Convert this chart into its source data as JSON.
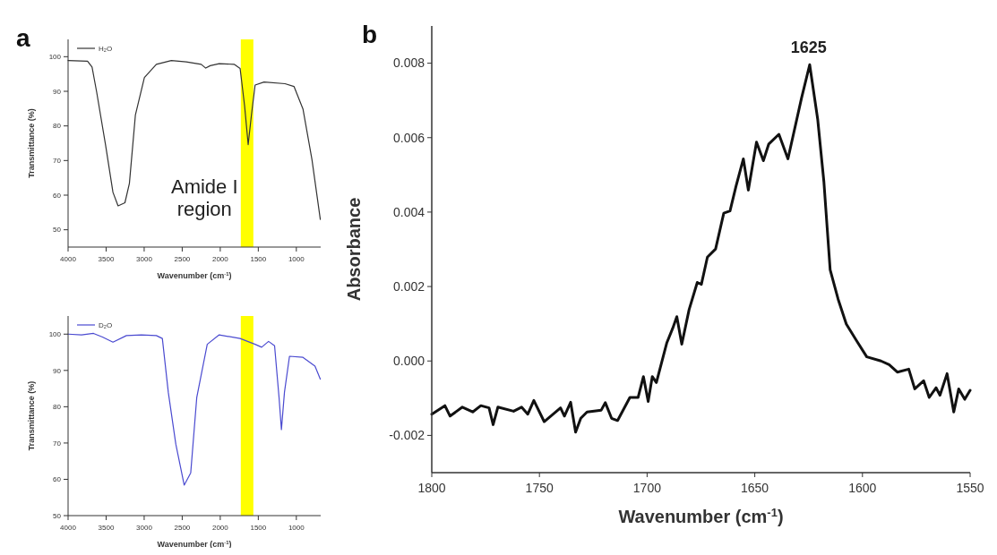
{
  "chart_data": [
    {
      "type": "line",
      "title": "a",
      "xlabel": "Wavenumber (cm$^{-1}$)",
      "ylabel": "Transmittance (%)",
      "xlim": [
        4000,
        680
      ],
      "ylim": [
        45,
        105
      ],
      "xticks": [
        4000,
        3500,
        3000,
        2500,
        2000,
        1500,
        1000
      ],
      "yticks": [
        50,
        60,
        70,
        80,
        90,
        100
      ],
      "legend": "top left",
      "annotations": [
        "Amide I region"
      ],
      "bands": [
        {
          "axis": "x",
          "from": 1730,
          "to": 1565,
          "color": "#ffff00"
        }
      ],
      "series": [
        {
          "name": "H₂O",
          "color": "#333333",
          "x": [
            4000,
            3744,
            3685,
            3626,
            3508,
            3410,
            3343,
            3253,
            3194,
            3115,
            2997,
            2840,
            2643,
            2447,
            2250,
            2191,
            2132,
            2014,
            1818,
            1739,
            1680,
            1633,
            1590,
            1542,
            1424,
            1149,
            1031,
            913,
            795,
            685
          ],
          "values": [
            98.9,
            98.7,
            97,
            90,
            74.6,
            60.8,
            56.9,
            57.8,
            63.4,
            83.2,
            94,
            97.8,
            98.9,
            98.5,
            97.8,
            96.7,
            97.4,
            98,
            97.8,
            96.6,
            85.8,
            74.6,
            83.2,
            91.8,
            92.7,
            92.2,
            91.4,
            84.9,
            70.3,
            53
          ]
        }
      ]
    },
    {
      "type": "line",
      "xlabel": "Wavenumber (cm$^{-1}$)",
      "ylabel": "Transmittance (%)",
      "xlim": [
        4000,
        680
      ],
      "ylim": [
        50,
        105
      ],
      "xticks": [
        4000,
        3500,
        3000,
        2500,
        2000,
        1500,
        1000
      ],
      "yticks": [
        50,
        60,
        70,
        80,
        90,
        100
      ],
      "legend": "top left",
      "bands": [
        {
          "axis": "x",
          "from": 1730,
          "to": 1565,
          "color": "#ffff00"
        }
      ],
      "series": [
        {
          "name": "D₂O",
          "color": "#4a4ad0",
          "x": [
            4000,
            3823,
            3666,
            3548,
            3410,
            3233,
            3037,
            2840,
            2761,
            2683,
            2584,
            2474,
            2388,
            2309,
            2171,
            2014,
            1739,
            1542,
            1456,
            1365,
            1286,
            1227,
            1196,
            1156,
            1090,
            913,
            755,
            685
          ],
          "values": [
            100,
            99.8,
            100.2,
            99.2,
            97.8,
            99.6,
            99.8,
            99.6,
            98.8,
            84,
            69.7,
            58.4,
            61.8,
            82.5,
            97.2,
            99.8,
            98.8,
            97.2,
            96.4,
            98,
            96.8,
            82.5,
            73.7,
            84,
            93.9,
            93.6,
            91.2,
            87.6
          ]
        }
      ]
    },
    {
      "type": "line",
      "title": "b",
      "xlabel": "Wavenumber (cm$^{-1}$)",
      "ylabel": "Absorbance",
      "xlim": [
        1800,
        1550
      ],
      "ylim": [
        -0.003,
        0.009
      ],
      "xticks": [
        1800,
        1750,
        1700,
        1650,
        1600,
        1550
      ],
      "yticks": [
        {
          "value": -0.002,
          "label": "-0.002"
        },
        {
          "value": 0,
          "label": "0.000"
        },
        0.002,
        0.004,
        0.006,
        0.008
      ],
      "annotations": [
        {
          "text": "1625",
          "x": 1625,
          "y": 0.008
        }
      ],
      "series": [
        {
          "color": "#111111",
          "x": [
            1800,
            1793.9,
            1791.5,
            1785.8,
            1781,
            1777.2,
            1773.4,
            1771.5,
            1769.3,
            1762,
            1758.3,
            1755.4,
            1752.6,
            1747.8,
            1740.2,
            1738.4,
            1735.5,
            1733.2,
            1730.8,
            1727.9,
            1721.3,
            1719.4,
            1716.5,
            1713.7,
            1708,
            1704.2,
            1701.7,
            1699.5,
            1697.6,
            1695.7,
            1690.9,
            1688.1,
            1686.2,
            1683.9,
            1680.5,
            1676.7,
            1674.8,
            1672,
            1668.2,
            1664.4,
            1661.5,
            1658.7,
            1655.3,
            1653,
            1649.2,
            1646,
            1643.5,
            1638.8,
            1634.6,
            1628.3,
            1624.5,
            1620.8,
            1617.9,
            1615,
            1611.3,
            1607.5,
            1602.7,
            1598,
            1591.4,
            1587.6,
            1583.8,
            1578.5,
            1575.7,
            1571.6,
            1569,
            1565.8,
            1564,
            1560.7,
            1557.6,
            1555.3,
            1552.5,
            1550
          ],
          "values": [
            -0.00143,
            -0.0012,
            -0.00148,
            -0.00124,
            -0.00137,
            -0.0012,
            -0.00126,
            -0.00171,
            -0.00124,
            -0.00135,
            -0.00124,
            -0.00143,
            -0.00106,
            -0.00163,
            -0.00126,
            -0.00148,
            -0.00111,
            -0.00191,
            -0.00154,
            -0.00137,
            -0.00132,
            -0.00112,
            -0.00154,
            -0.0016,
            -0.00098,
            -0.00098,
            -0.00042,
            -0.00109,
            -0.00042,
            -0.00058,
            0.00048,
            0.00088,
            0.00119,
            0.00045,
            0.00138,
            0.00211,
            0.00206,
            0.00279,
            0.00301,
            0.00397,
            0.00403,
            0.0047,
            0.00543,
            0.00459,
            0.00588,
            0.00538,
            0.00583,
            0.00609,
            0.00543,
            0.00706,
            0.00796,
            0.0065,
            0.00481,
            0.00245,
            0.00166,
            0.00099,
            0.00054,
            0.00011,
            0,
            -0.0001,
            -0.0003,
            -0.00022,
            -0.00075,
            -0.00053,
            -0.00098,
            -0.00072,
            -0.00092,
            -0.00034,
            -0.00137,
            -0.00075,
            -0.00103,
            -0.00079
          ]
        }
      ]
    }
  ]
}
